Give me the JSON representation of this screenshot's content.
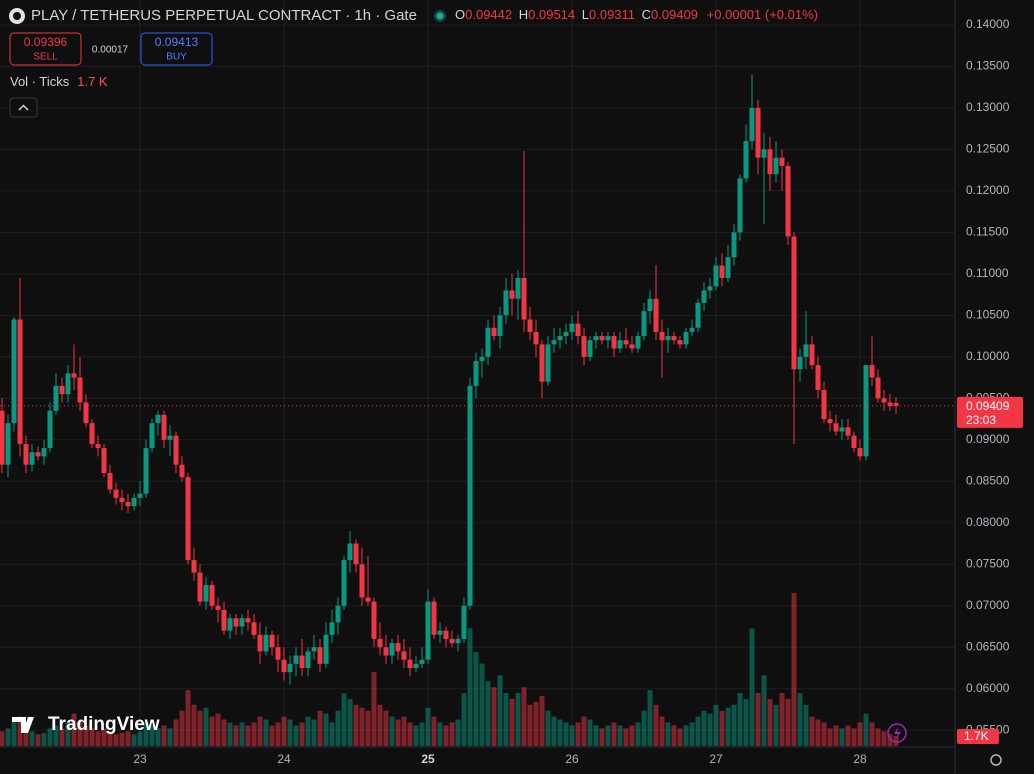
{
  "header": {
    "title": "PLAY / TETHERUS PERPETUAL CONTRACT · 1h · Gate",
    "o_label": "O",
    "h_label": "H",
    "l_label": "L",
    "c_label": "C",
    "change": "+0.00001 (+0.01%)",
    "sell_price": "0.09396",
    "sell_label": "SELL",
    "spread": "0.00017",
    "buy_price": "0.09413",
    "buy_label": "BUY"
  },
  "branding": "TradingView",
  "chart_data": {
    "type": "candlestick",
    "categories": [
      null,
      null,
      null,
      null,
      null,
      null,
      null,
      null,
      null,
      null,
      null,
      null,
      null,
      null,
      null,
      null,
      null,
      null,
      null,
      null,
      null,
      null,
      null,
      "23",
      null,
      null,
      null,
      null,
      null,
      null,
      null,
      null,
      null,
      null,
      null,
      null,
      null,
      null,
      null,
      null,
      null,
      null,
      null,
      null,
      null,
      null,
      null,
      "24",
      null,
      null,
      null,
      null,
      null,
      null,
      null,
      null,
      null,
      null,
      null,
      null,
      null,
      null,
      null,
      null,
      null,
      null,
      null,
      null,
      null,
      null,
      null,
      "25",
      null,
      null,
      null,
      null,
      null,
      null,
      null,
      null,
      null,
      null,
      null,
      null,
      null,
      null,
      null,
      null,
      null,
      null,
      null,
      null,
      null,
      null,
      null,
      "26",
      null,
      null,
      null,
      null,
      null,
      null,
      null,
      null,
      null,
      null,
      null,
      null,
      null,
      null,
      null,
      null,
      null,
      null,
      null,
      null,
      null,
      null,
      null,
      "27",
      null,
      null,
      null,
      null,
      null,
      null,
      null,
      null,
      null,
      null,
      null,
      null,
      null,
      null,
      null,
      null,
      null,
      null,
      null,
      null,
      null,
      null,
      null,
      "28",
      null,
      null,
      null,
      null,
      null,
      null
    ],
    "open": [
      0.0935,
      0.087,
      0.092,
      0.1045,
      0.0895,
      0.087,
      0.0885,
      0.088,
      0.089,
      0.0935,
      0.0965,
      0.0955,
      0.098,
      0.0975,
      0.0945,
      0.092,
      0.0895,
      0.089,
      0.086,
      0.084,
      0.083,
      0.0825,
      0.082,
      0.083,
      0.0835,
      0.089,
      0.092,
      0.093,
      0.09,
      0.0905,
      0.087,
      0.0855,
      0.0755,
      0.074,
      0.0705,
      0.0725,
      0.07,
      0.0695,
      0.067,
      0.0685,
      0.0675,
      0.0685,
      0.068,
      0.0665,
      0.0645,
      0.0665,
      0.065,
      0.0635,
      0.062,
      0.063,
      0.064,
      0.0625,
      0.0645,
      0.065,
      0.063,
      0.0665,
      0.068,
      0.07,
      0.0755,
      0.0775,
      0.075,
      0.071,
      0.0705,
      0.066,
      0.065,
      0.064,
      0.0655,
      0.0645,
      0.0635,
      0.0625,
      0.063,
      0.0635,
      0.0705,
      0.0665,
      0.067,
      0.066,
      0.0655,
      0.066,
      0.07,
      0.0965,
      0.0995,
      0.1,
      0.1035,
      0.1025,
      0.105,
      0.108,
      0.107,
      0.1095,
      0.1045,
      0.103,
      0.1015,
      0.097,
      0.1015,
      0.102,
      0.1025,
      0.103,
      0.104,
      0.1025,
      0.1,
      0.102,
      0.1025,
      0.102,
      0.1025,
      0.101,
      0.102,
      0.1015,
      0.101,
      0.1025,
      0.1055,
      0.107,
      0.103,
      0.102,
      0.1025,
      0.102,
      0.1015,
      0.103,
      0.1035,
      0.1065,
      0.108,
      0.1085,
      0.111,
      0.1095,
      0.112,
      0.115,
      0.1215,
      0.126,
      0.13,
      0.124,
      0.125,
      0.122,
      0.124,
      0.123,
      0.1145,
      0.0985,
      0.1,
      0.1015,
      0.099,
      0.096,
      0.0925,
      0.092,
      0.091,
      0.0915,
      0.0905,
      0.089,
      0.088,
      0.099,
      0.0975,
      0.095,
      0.0945,
      0.09442
    ],
    "high": [
      0.095,
      0.093,
      0.1048,
      0.1095,
      0.0905,
      0.0895,
      0.0892,
      0.09,
      0.0945,
      0.098,
      0.0975,
      0.099,
      0.1015,
      0.1,
      0.0955,
      0.0925,
      0.0905,
      0.0895,
      0.087,
      0.0848,
      0.084,
      0.0835,
      0.0835,
      0.085,
      0.09,
      0.0925,
      0.0935,
      0.0935,
      0.0918,
      0.091,
      0.088,
      0.086,
      0.077,
      0.075,
      0.0735,
      0.073,
      0.071,
      0.0705,
      0.069,
      0.069,
      0.069,
      0.0695,
      0.069,
      0.068,
      0.0675,
      0.067,
      0.0665,
      0.065,
      0.064,
      0.065,
      0.066,
      0.065,
      0.0665,
      0.066,
      0.068,
      0.0695,
      0.071,
      0.076,
      0.079,
      0.078,
      0.077,
      0.076,
      0.071,
      0.068,
      0.0665,
      0.066,
      0.0665,
      0.066,
      0.065,
      0.064,
      0.065,
      0.072,
      0.071,
      0.068,
      0.0675,
      0.067,
      0.0665,
      0.071,
      0.0975,
      0.1005,
      0.101,
      0.1045,
      0.105,
      0.106,
      0.1095,
      0.11,
      0.1105,
      0.1248,
      0.106,
      0.1045,
      0.102,
      0.1025,
      0.1035,
      0.1035,
      0.104,
      0.105,
      0.1055,
      0.1035,
      0.1025,
      0.103,
      0.103,
      0.103,
      0.103,
      0.103,
      0.1035,
      0.1025,
      0.103,
      0.1065,
      0.108,
      0.111,
      0.1045,
      0.1035,
      0.103,
      0.1025,
      0.1035,
      0.1045,
      0.107,
      0.109,
      0.1095,
      0.112,
      0.1125,
      0.1135,
      0.116,
      0.122,
      0.128,
      0.134,
      0.131,
      0.127,
      0.1265,
      0.126,
      0.125,
      0.1235,
      0.115,
      0.101,
      0.1055,
      0.1025,
      0.1,
      0.097,
      0.0935,
      0.093,
      0.0925,
      0.0925,
      0.091,
      0.09,
      0.099,
      0.1025,
      0.0985,
      0.096,
      0.0955,
      0.09514
    ],
    "low": [
      0.086,
      0.0855,
      0.091,
      0.088,
      0.086,
      0.0862,
      0.0875,
      0.087,
      0.0885,
      0.093,
      0.0945,
      0.0945,
      0.096,
      0.0935,
      0.0915,
      0.089,
      0.088,
      0.0855,
      0.0835,
      0.0822,
      0.0815,
      0.0812,
      0.0815,
      0.082,
      0.083,
      0.0885,
      0.0905,
      0.089,
      0.088,
      0.086,
      0.085,
      0.075,
      0.073,
      0.07,
      0.0695,
      0.0695,
      0.068,
      0.0665,
      0.066,
      0.0665,
      0.0665,
      0.067,
      0.066,
      0.063,
      0.064,
      0.064,
      0.062,
      0.061,
      0.0605,
      0.0615,
      0.0615,
      0.0615,
      0.0635,
      0.062,
      0.0625,
      0.0655,
      0.0665,
      0.0695,
      0.074,
      0.074,
      0.07,
      0.07,
      0.065,
      0.064,
      0.063,
      0.063,
      0.0635,
      0.0625,
      0.0615,
      0.062,
      0.0625,
      0.063,
      0.066,
      0.0655,
      0.065,
      0.065,
      0.0645,
      0.0655,
      0.0695,
      0.095,
      0.0975,
      0.099,
      0.102,
      0.101,
      0.104,
      0.105,
      0.1045,
      0.103,
      0.102,
      0.1,
      0.095,
      0.0965,
      0.1005,
      0.101,
      0.1015,
      0.102,
      0.1015,
      0.099,
      0.0995,
      0.101,
      0.1015,
      0.101,
      0.1,
      0.1005,
      0.101,
      0.1005,
      0.1005,
      0.102,
      0.104,
      0.102,
      0.0975,
      0.1005,
      0.1015,
      0.101,
      0.101,
      0.1025,
      0.103,
      0.1055,
      0.107,
      0.108,
      0.1085,
      0.109,
      0.111,
      0.114,
      0.121,
      0.125,
      0.122,
      0.116,
      0.12,
      0.121,
      0.12,
      0.1135,
      0.0895,
      0.097,
      0.0985,
      0.0985,
      0.095,
      0.092,
      0.091,
      0.0905,
      0.09,
      0.09,
      0.0885,
      0.0875,
      0.0875,
      0.0965,
      0.0945,
      0.0935,
      0.0935,
      0.09311
    ],
    "close": [
      0.087,
      0.092,
      0.1045,
      0.0895,
      0.087,
      0.0885,
      0.088,
      0.089,
      0.0935,
      0.0965,
      0.0955,
      0.098,
      0.0975,
      0.0945,
      0.092,
      0.0895,
      0.089,
      0.086,
      0.084,
      0.083,
      0.0825,
      0.082,
      0.083,
      0.0835,
      0.089,
      0.092,
      0.093,
      0.09,
      0.0905,
      0.087,
      0.0855,
      0.0755,
      0.074,
      0.0705,
      0.0725,
      0.07,
      0.0695,
      0.067,
      0.0685,
      0.0675,
      0.0685,
      0.068,
      0.0665,
      0.0645,
      0.0665,
      0.065,
      0.0635,
      0.062,
      0.063,
      0.064,
      0.0625,
      0.0645,
      0.065,
      0.063,
      0.0665,
      0.068,
      0.07,
      0.0755,
      0.0775,
      0.075,
      0.071,
      0.0705,
      0.066,
      0.065,
      0.064,
      0.0655,
      0.0645,
      0.0635,
      0.0625,
      0.063,
      0.0635,
      0.0705,
      0.0665,
      0.067,
      0.066,
      0.0655,
      0.066,
      0.07,
      0.0965,
      0.0995,
      0.1,
      0.1035,
      0.1025,
      0.105,
      0.108,
      0.107,
      0.1095,
      0.1045,
      0.103,
      0.1015,
      0.097,
      0.1015,
      0.102,
      0.1025,
      0.103,
      0.104,
      0.1025,
      0.1,
      0.102,
      0.1025,
      0.102,
      0.1025,
      0.101,
      0.102,
      0.1015,
      0.101,
      0.1025,
      0.1055,
      0.107,
      0.103,
      0.102,
      0.1025,
      0.102,
      0.1015,
      0.103,
      0.1035,
      0.1065,
      0.108,
      0.1085,
      0.111,
      0.1095,
      0.112,
      0.115,
      0.1215,
      0.126,
      0.13,
      0.124,
      0.125,
      0.122,
      0.124,
      0.123,
      0.1145,
      0.0985,
      0.1,
      0.1015,
      0.099,
      0.096,
      0.0925,
      0.092,
      0.091,
      0.0915,
      0.0905,
      0.089,
      0.088,
      0.099,
      0.0975,
      0.095,
      0.0945,
      0.09408,
      0.09409
    ],
    "colors": {
      "up": "#089981",
      "down": "#f23645"
    },
    "ylim": [
      0.0531,
      0.143
    ],
    "yticks": [
      {
        "value": 0.055,
        "label": "0.05500"
      },
      {
        "value": 0.06,
        "label": "0.06000"
      },
      {
        "value": 0.065,
        "label": "0.06500"
      },
      {
        "value": 0.07,
        "label": "0.07000"
      },
      {
        "value": 0.075,
        "label": "0.07500"
      },
      {
        "value": 0.08,
        "label": "0.08000"
      },
      {
        "value": 0.085,
        "label": "0.08500"
      },
      {
        "value": 0.09,
        "label": "0.09000"
      },
      {
        "value": 0.095,
        "label": "0.09500"
      },
      {
        "value": 0.1,
        "label": "0.10000"
      },
      {
        "value": 0.105,
        "label": "0.10500"
      },
      {
        "value": 0.11,
        "label": "0.11000"
      },
      {
        "value": 0.115,
        "label": "0.11500"
      },
      {
        "value": 0.12,
        "label": "0.12000"
      },
      {
        "value": 0.125,
        "label": "0.12500"
      },
      {
        "value": 0.13,
        "label": "0.13000"
      },
      {
        "value": 0.135,
        "label": "0.13500"
      },
      {
        "value": 0.14,
        "label": "0.14000"
      }
    ],
    "grid": true,
    "last_price_countdown": "23:03",
    "volume": {
      "name": "Vol · Ticks",
      "last_label": "1.7 K",
      "axis_label": "1.7K",
      "values": [
        2500,
        3000,
        4500,
        5000,
        3000,
        2500,
        2000,
        2200,
        3000,
        3500,
        3000,
        4000,
        5500,
        4000,
        3500,
        3000,
        2500,
        3000,
        2500,
        2000,
        2200,
        2500,
        2000,
        2500,
        4000,
        3500,
        3000,
        3500,
        3000,
        4500,
        6000,
        9500,
        7000,
        6000,
        6500,
        5000,
        5500,
        4500,
        4000,
        3500,
        4000,
        3500,
        4000,
        5000,
        4500,
        3500,
        4000,
        5000,
        4500,
        3500,
        4000,
        5000,
        4500,
        6000,
        5500,
        4000,
        6000,
        9000,
        8000,
        7000,
        6500,
        6000,
        12600,
        7000,
        6000,
        5000,
        4500,
        5000,
        4000,
        3500,
        4000,
        6500,
        5000,
        4000,
        3500,
        4000,
        4500,
        9000,
        20000,
        16000,
        14000,
        11000,
        10000,
        12000,
        9000,
        8000,
        9000,
        10000,
        7000,
        7500,
        8500,
        6000,
        5000,
        4500,
        4000,
        3500,
        4000,
        5000,
        4500,
        3500,
        3000,
        3500,
        4000,
        3500,
        3000,
        3500,
        4000,
        6000,
        9500,
        7000,
        5000,
        4000,
        3500,
        3000,
        3500,
        4000,
        5000,
        6000,
        5500,
        7000,
        6000,
        6500,
        7000,
        9000,
        8000,
        20000,
        9000,
        12000,
        8000,
        7000,
        9000,
        8000,
        26000,
        9000,
        7000,
        5000,
        4500,
        4000,
        3000,
        3500,
        3000,
        3500,
        3000,
        4000,
        5500,
        4000,
        3000,
        2500,
        2000,
        1700
      ]
    }
  }
}
